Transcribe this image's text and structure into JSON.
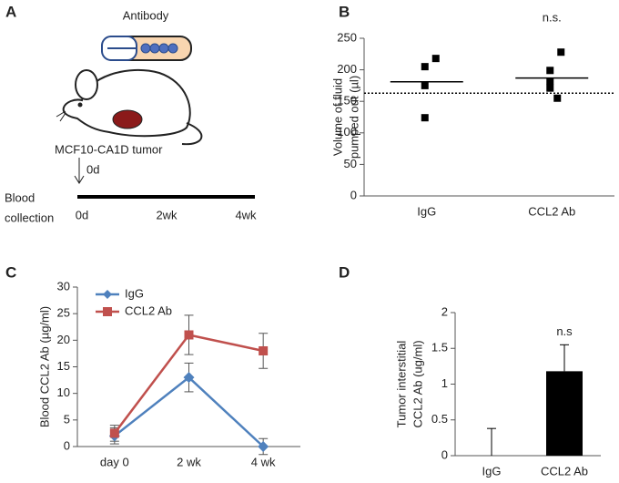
{
  "diagram": {
    "label": "A",
    "title": "Antibody",
    "tumor_label": "MCF10-CA1D tumor",
    "arrow_label": "0d",
    "timeline_label": [
      "Blood",
      "collection"
    ],
    "timeline_ticks": [
      "0d",
      "2wk",
      "4wk"
    ]
  },
  "chart_data": [
    {
      "label": "B",
      "type": "strip",
      "annotation": "n.s.",
      "y_label": [
        "Volume of fluid",
        "pumped out  (µl)"
      ],
      "categories": [
        "IgG",
        "CCL2 Ab"
      ],
      "points": [
        [
          218,
          205,
          175,
          124
        ],
        [
          228,
          199,
          182,
          171,
          155
        ]
      ],
      "means": [
        181,
        187
      ],
      "reference_line": 163,
      "color": "#000000",
      "ylim": [
        0,
        250
      ],
      "yticks": [
        0,
        50,
        100,
        150,
        200,
        250
      ]
    },
    {
      "label": "C",
      "type": "line",
      "y_label": [
        "Blood CCL2 Ab (µg/ml)"
      ],
      "categories": [
        "day 0",
        "2 wk",
        "4 wk"
      ],
      "series": [
        {
          "name": "IgG",
          "color": "#4f81bd",
          "marker": "diamond",
          "values": [
            2,
            13,
            0
          ],
          "errors": [
            1.5,
            2.7,
            1.5
          ]
        },
        {
          "name": "CCL2 Ab",
          "color": "#c0504d",
          "marker": "square",
          "values": [
            2.5,
            21,
            18
          ],
          "errors": [
            1.5,
            3.7,
            3.3
          ]
        }
      ],
      "ylim": [
        0,
        30
      ],
      "yticks": [
        0,
        5,
        10,
        15,
        20,
        25,
        30
      ],
      "legend": "upper left"
    },
    {
      "label": "D",
      "type": "bar",
      "annotation": "n.s",
      "y_label": [
        "Tumor interstitial",
        "CCL2 Ab (ug/ml)"
      ],
      "categories": [
        "IgG",
        "CCL2 Ab"
      ],
      "values": [
        0,
        1.18
      ],
      "errors": [
        0.38,
        0.37
      ],
      "color": "#000000",
      "ylim": [
        0,
        2
      ],
      "yticks": [
        0,
        0.5,
        1,
        1.5,
        2
      ]
    }
  ]
}
